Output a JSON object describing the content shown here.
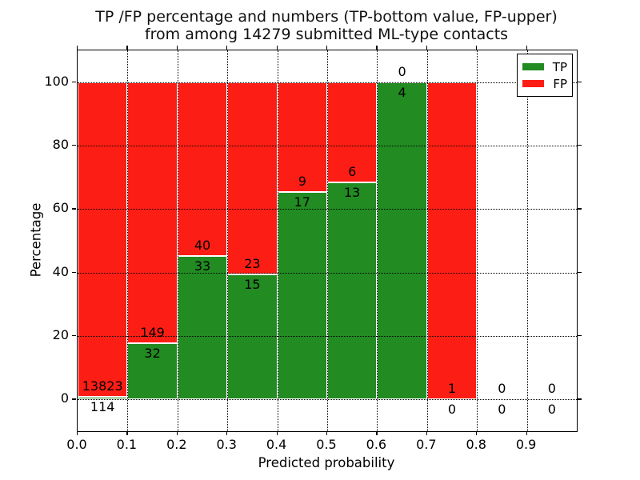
{
  "chart_data": {
    "type": "bar",
    "stacked": true,
    "title_line1": "TP /FP percentage and numbers (TP-bottom value, FP-upper)",
    "title_line2": "from among 14279 submitted ML-type contacts",
    "total_contacts": 14279,
    "xlabel": "Predicted probability",
    "ylabel": "Percentage",
    "x_tick_labels": [
      "0.0",
      "0.1",
      "0.2",
      "0.3",
      "0.4",
      "0.5",
      "0.6",
      "0.7",
      "0.8",
      "0.9"
    ],
    "x_tick_values": [
      0.0,
      0.1,
      0.2,
      0.3,
      0.4,
      0.5,
      0.6,
      0.7,
      0.8,
      0.9
    ],
    "y_ticks": [
      0,
      20,
      40,
      60,
      80,
      100
    ],
    "xlim": [
      0.0,
      1.0
    ],
    "ylim": [
      -10,
      110
    ],
    "bin_width": 0.1,
    "grid": true,
    "legend_position": "upper-right",
    "legend": [
      {
        "label": "TP",
        "color": "#228b22"
      },
      {
        "label": "FP",
        "color": "#fc1e15"
      }
    ],
    "colors": {
      "tp": "#228b22",
      "fp": "#fc1e15",
      "bar_edge": "#ffffff",
      "grid": "#000000"
    },
    "bins": [
      {
        "x_start": 0.0,
        "tp": 114,
        "fp": 13823
      },
      {
        "x_start": 0.1,
        "tp": 32,
        "fp": 149
      },
      {
        "x_start": 0.2,
        "tp": 33,
        "fp": 40
      },
      {
        "x_start": 0.3,
        "tp": 15,
        "fp": 23
      },
      {
        "x_start": 0.4,
        "tp": 17,
        "fp": 9
      },
      {
        "x_start": 0.5,
        "tp": 13,
        "fp": 6
      },
      {
        "x_start": 0.6,
        "tp": 4,
        "fp": 0
      },
      {
        "x_start": 0.7,
        "tp": 0,
        "fp": 1
      },
      {
        "x_start": 0.8,
        "tp": 0,
        "fp": 0
      },
      {
        "x_start": 0.9,
        "tp": 0,
        "fp": 0
      }
    ]
  }
}
